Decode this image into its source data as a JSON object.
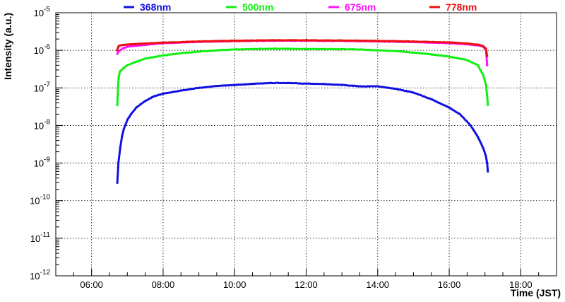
{
  "chart_data": {
    "type": "scatter",
    "title": "",
    "xlabel": "Time (JST)",
    "ylabel": "Intensity (a.u.)",
    "x_unit": "hours (JST)",
    "xlim": [
      5.0,
      19.0
    ],
    "ylim": [
      1e-12,
      1e-05
    ],
    "y_scale": "log",
    "grid": true,
    "grid_style": "dotted",
    "legend_position": "top, horizontal above plot",
    "x_ticks": [
      {
        "value": 6,
        "label": "06:00"
      },
      {
        "value": 8,
        "label": "08:00"
      },
      {
        "value": 10,
        "label": "10:00"
      },
      {
        "value": 12,
        "label": "12:00"
      },
      {
        "value": 14,
        "label": "14:00"
      },
      {
        "value": 16,
        "label": "16:00"
      },
      {
        "value": 18,
        "label": "18:00"
      }
    ],
    "y_ticks": [
      {
        "value": 1e-12,
        "base": "10",
        "exp": "-12"
      },
      {
        "value": 1e-11,
        "base": "10",
        "exp": "-11"
      },
      {
        "value": 1e-10,
        "base": "10",
        "exp": "-10"
      },
      {
        "value": 1e-09,
        "base": "10",
        "exp": "-9"
      },
      {
        "value": 1e-08,
        "base": "10",
        "exp": "-8"
      },
      {
        "value": 1e-07,
        "base": "10",
        "exp": "-7"
      },
      {
        "value": 1e-06,
        "base": "10",
        "exp": "-6"
      },
      {
        "value": 1e-05,
        "base": "10",
        "exp": "-5"
      }
    ],
    "series": [
      {
        "name": "368nm",
        "color": "#1010e0",
        "x": [
          6.72,
          6.75,
          6.8,
          6.85,
          6.9,
          7.0,
          7.1,
          7.25,
          7.5,
          7.75,
          8.0,
          8.5,
          9.0,
          9.5,
          10.0,
          10.5,
          11.0,
          11.5,
          12.0,
          12.5,
          13.0,
          13.5,
          14.0,
          14.5,
          15.0,
          15.5,
          16.0,
          16.3,
          16.6,
          16.8,
          16.95,
          17.02,
          17.06,
          17.08
        ],
        "y": [
          3e-10,
          1e-09,
          2.5e-09,
          5e-09,
          8e-09,
          1.4e-08,
          2e-08,
          3e-08,
          4.5e-08,
          6e-08,
          7e-08,
          8.5e-08,
          1e-07,
          1.12e-07,
          1.2e-07,
          1.28e-07,
          1.35e-07,
          1.35e-07,
          1.3e-07,
          1.27e-07,
          1.2e-07,
          1.1e-07,
          1.1e-07,
          9.5e-08,
          7.5e-08,
          5e-08,
          3e-08,
          2e-08,
          1e-08,
          5e-09,
          2.5e-09,
          1.6e-09,
          1e-09,
          6e-10
        ]
      },
      {
        "name": "500nm",
        "color": "#10f010",
        "x": [
          6.72,
          6.74,
          6.76,
          6.8,
          6.9,
          7.0,
          7.25,
          7.5,
          8.0,
          8.5,
          9.0,
          9.5,
          10.0,
          10.5,
          11.0,
          11.5,
          12.0,
          12.5,
          13.0,
          13.5,
          14.0,
          14.5,
          15.0,
          15.5,
          16.0,
          16.5,
          16.8,
          16.95,
          17.03,
          17.06,
          17.08
        ],
        "y": [
          3.5e-08,
          1e-07,
          2e-07,
          2.8e-07,
          3.4e-07,
          4e-07,
          5e-07,
          6e-07,
          7.3e-07,
          8.4e-07,
          9.2e-07,
          1e-06,
          1.05e-06,
          1.08e-06,
          1.1e-06,
          1.1e-06,
          1.08e-06,
          1.08e-06,
          1.07e-06,
          1.05e-06,
          1e-06,
          9.6e-07,
          8.7e-07,
          7.8e-07,
          6.8e-07,
          5.5e-07,
          4e-07,
          2.2e-07,
          1.2e-07,
          6e-08,
          3.5e-08
        ]
      },
      {
        "name": "675nm",
        "color": "#ff10ff",
        "x": [
          6.72,
          6.74,
          6.76,
          6.8,
          6.9,
          7.0,
          7.5,
          8.0,
          9.0,
          10.0,
          11.0,
          12.0,
          13.0,
          14.0,
          15.0,
          16.0,
          16.5,
          16.8,
          16.95,
          17.03,
          17.06
        ],
        "y": [
          8e-07,
          9e-07,
          9.5e-07,
          1e-06,
          1.15e-06,
          1.25e-06,
          1.4e-06,
          1.55e-06,
          1.68e-06,
          1.75e-06,
          1.8e-06,
          1.8e-06,
          1.78e-06,
          1.72e-06,
          1.66e-06,
          1.55e-06,
          1.45e-06,
          1.35e-06,
          1.25e-06,
          1e-06,
          4e-07
        ]
      },
      {
        "name": "778nm",
        "color": "#ee1010",
        "x": [
          6.72,
          6.74,
          6.76,
          6.8,
          6.9,
          7.0,
          7.5,
          8.0,
          9.0,
          10.0,
          11.0,
          12.0,
          13.0,
          14.0,
          15.0,
          16.0,
          16.5,
          16.8,
          16.95,
          17.03,
          17.06
        ],
        "y": [
          1e-06,
          1.2e-06,
          1.3e-06,
          1.35e-06,
          1.4e-06,
          1.42e-06,
          1.52e-06,
          1.6e-06,
          1.72e-06,
          1.8e-06,
          1.85e-06,
          1.85e-06,
          1.83e-06,
          1.78e-06,
          1.72e-06,
          1.62e-06,
          1.52e-06,
          1.42e-06,
          1.3e-06,
          1.1e-06,
          7e-07
        ]
      }
    ]
  }
}
